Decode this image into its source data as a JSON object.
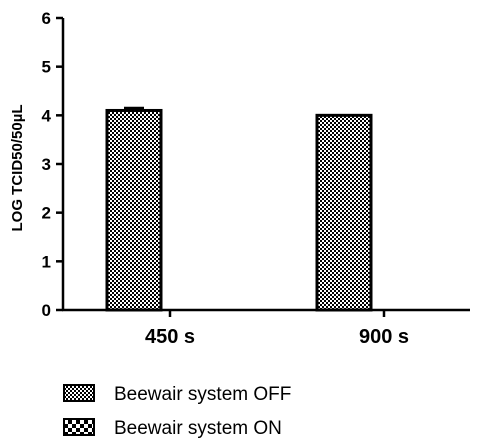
{
  "chart_data": {
    "type": "bar",
    "categories": [
      "450 s",
      "900 s"
    ],
    "series": [
      {
        "name": "Beewair system OFF",
        "values": [
          4.1,
          4.0
        ],
        "error": [
          0.05,
          0.0
        ],
        "pattern": "dense-checker"
      },
      {
        "name": "Beewair system ON",
        "values": [
          0,
          0
        ],
        "error": [
          0,
          0
        ],
        "pattern": "coarse-checker"
      }
    ],
    "ylabel": "LOG TCID50/50µL",
    "xlabel": "",
    "ylim": [
      0,
      6
    ],
    "yticks": [
      "0",
      "1",
      "2",
      "3",
      "4",
      "5",
      "6"
    ],
    "grid": false,
    "legend_position": "bottom-left"
  }
}
